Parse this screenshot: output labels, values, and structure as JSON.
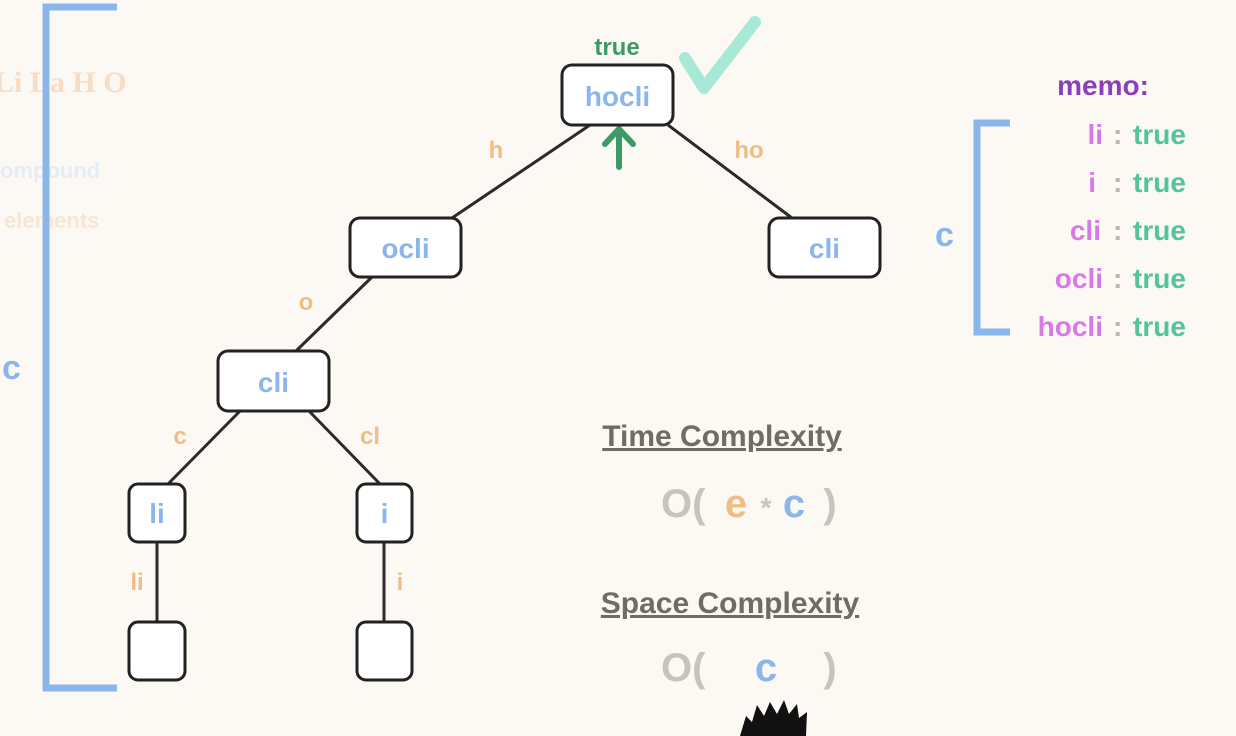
{
  "faded_background": {
    "title_fragment": "Li La H O",
    "line1": "ompound",
    "line2": "elements"
  },
  "tree": {
    "root_result": "true",
    "nodes": {
      "root": "hocli",
      "ocli": "ocli",
      "cli_right": "cli",
      "cli": "cli",
      "li": "li",
      "i": "i",
      "leaf_li": "",
      "leaf_i": ""
    },
    "edges": {
      "h": "h",
      "ho": "ho",
      "o": "o",
      "c": "c",
      "cl": "cl",
      "li": "li",
      "i": "i"
    }
  },
  "left_bracket_label": "c",
  "memo": {
    "title": "memo:",
    "bracket_label": "c",
    "entries": [
      {
        "key": "li",
        "sep": ":",
        "value": "true"
      },
      {
        "key": "i",
        "sep": ":",
        "value": "true"
      },
      {
        "key": "cli",
        "sep": ":",
        "value": "true"
      },
      {
        "key": "ocli",
        "sep": ":",
        "value": "true"
      },
      {
        "key": "hocli",
        "sep": ":",
        "value": "true"
      }
    ]
  },
  "time_complexity": {
    "title": "Time Complexity",
    "open": "O(",
    "e": "e",
    "star": "*",
    "c": "c",
    "close": ")"
  },
  "space_complexity": {
    "title": "Space Complexity",
    "open": "O(",
    "c": "c",
    "close": ")"
  },
  "colors": {
    "node_text": "#8ab6ec",
    "edge_label": "#f0be84",
    "true_text": "#3c9a66",
    "memo_title": "#8b3fba",
    "memo_key": "#d77ae8",
    "memo_value": "#53c49b",
    "checkmark": "#a7e8d6",
    "up_arrow": "#3c9a66"
  },
  "icons": [
    "checkmark-icon",
    "up-arrow-icon",
    "avatar-hair-icon"
  ]
}
